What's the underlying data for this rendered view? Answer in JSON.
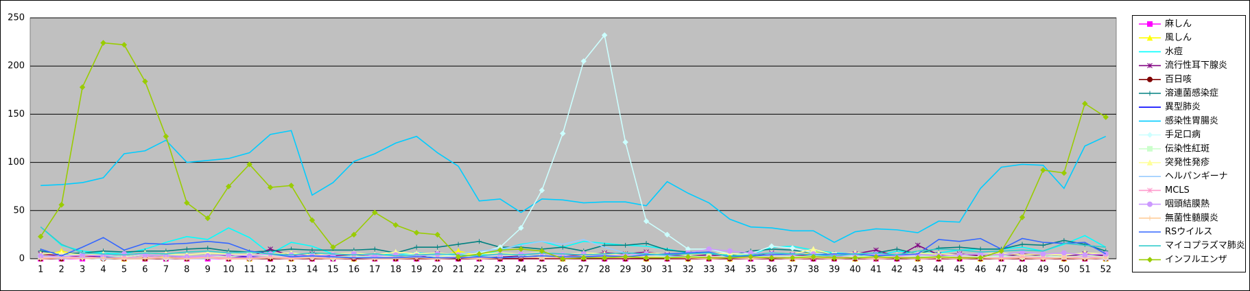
{
  "chart_data": {
    "type": "line",
    "categories": [
      "1",
      "2",
      "3",
      "4",
      "5",
      "6",
      "7",
      "8",
      "9",
      "10",
      "11",
      "12",
      "13",
      "14",
      "15",
      "16",
      "17",
      "18",
      "19",
      "20",
      "21",
      "22",
      "23",
      "24",
      "25",
      "26",
      "27",
      "28",
      "29",
      "30",
      "31",
      "32",
      "33",
      "34",
      "35",
      "36",
      "37",
      "38",
      "39",
      "40",
      "41",
      "42",
      "43",
      "44",
      "45",
      "46",
      "47",
      "48",
      "49",
      "50",
      "51",
      "52"
    ],
    "ylim": [
      0,
      250
    ],
    "yticks": [
      0,
      50,
      100,
      150,
      200,
      250
    ],
    "grid": true,
    "legend": "right",
    "series": [
      {
        "name": "麻しん",
        "color": "#FF00FF",
        "marker": "square",
        "values": [
          0,
          0,
          0,
          1,
          0,
          0,
          0,
          0,
          0,
          0,
          0,
          0,
          0,
          0,
          0,
          0,
          0,
          0,
          0,
          0,
          0,
          0,
          0,
          0,
          0,
          0,
          0,
          0,
          0,
          0,
          0,
          0,
          0,
          0,
          0,
          0,
          0,
          0,
          0,
          0,
          0,
          0,
          0,
          0,
          0,
          0,
          0,
          0,
          0,
          0,
          0,
          0
        ]
      },
      {
        "name": "風しん",
        "color": "#FFFF00",
        "marker": "triangle",
        "values": [
          2,
          8,
          3,
          1,
          0,
          1,
          2,
          1,
          3,
          1,
          0,
          1,
          0,
          1,
          2,
          0,
          1,
          4,
          2,
          1,
          8,
          3,
          1,
          2,
          1,
          0,
          1,
          3,
          5,
          0,
          1,
          0,
          1,
          0,
          2,
          1,
          0,
          8,
          1,
          0,
          1,
          2,
          0,
          1,
          2,
          0,
          1,
          2,
          1,
          0,
          1,
          0
        ]
      },
      {
        "name": "水痘",
        "color": "#00FFFF",
        "marker": "none",
        "values": [
          33,
          14,
          8,
          6,
          5,
          10,
          17,
          23,
          20,
          32,
          22,
          5,
          17,
          13,
          5,
          3,
          5,
          4,
          6,
          5,
          5,
          3,
          9,
          15,
          18,
          12,
          18,
          16,
          14,
          13,
          10,
          6,
          5,
          4,
          4,
          12,
          13,
          9,
          6,
          5,
          3,
          8,
          6,
          6,
          9,
          10,
          10,
          12,
          8,
          15,
          24,
          12
        ]
      },
      {
        "name": "流行性耳下腺炎",
        "color": "#800080",
        "marker": "star",
        "values": [
          5,
          3,
          2,
          3,
          2,
          4,
          3,
          1,
          2,
          3,
          2,
          10,
          3,
          5,
          3,
          4,
          2,
          2,
          1,
          5,
          3,
          1,
          2,
          3,
          2,
          3,
          4,
          6,
          5,
          7,
          4,
          3,
          4,
          2,
          3,
          6,
          4,
          3,
          4,
          5,
          9,
          2,
          14,
          4,
          5,
          3,
          2,
          5,
          3,
          2,
          5,
          3
        ]
      },
      {
        "name": "百日咳",
        "color": "#800000",
        "marker": "circle",
        "values": [
          0,
          0,
          1,
          0,
          0,
          0,
          0,
          0,
          1,
          0,
          0,
          0,
          0,
          0,
          0,
          0,
          0,
          0,
          0,
          0,
          0,
          0,
          0,
          0,
          0,
          0,
          0,
          0,
          0,
          0,
          0,
          0,
          0,
          0,
          0,
          0,
          0,
          0,
          0,
          0,
          0,
          0,
          0,
          0,
          0,
          0,
          0,
          0,
          0,
          0,
          0,
          0
        ]
      },
      {
        "name": "溶連菌感染症",
        "color": "#008080",
        "marker": "plus",
        "values": [
          8,
          5,
          6,
          8,
          7,
          8,
          8,
          10,
          11,
          8,
          7,
          8,
          10,
          9,
          9,
          9,
          10,
          6,
          12,
          12,
          15,
          18,
          12,
          12,
          10,
          12,
          8,
          14,
          14,
          16,
          9,
          7,
          6,
          3,
          8,
          10,
          9,
          6,
          5,
          3,
          6,
          10,
          5,
          11,
          12,
          10,
          10,
          15,
          14,
          19,
          15,
          8
        ]
      },
      {
        "name": "異型肺炎",
        "color": "#0000FF",
        "marker": "none",
        "values": [
          3,
          2,
          1,
          2,
          1,
          2,
          1,
          1,
          2,
          1,
          2,
          1,
          0,
          1,
          2,
          1,
          1,
          2,
          1,
          2,
          1,
          0,
          1,
          2,
          1,
          2,
          1,
          1,
          2,
          1,
          1,
          2,
          1,
          1,
          0,
          1,
          2,
          1,
          2,
          1,
          1,
          1,
          1,
          1,
          2,
          1,
          2,
          1,
          1,
          1,
          2,
          1
        ]
      },
      {
        "name": "感染性胃腸炎",
        "color": "#00CCFF",
        "marker": "none",
        "values": [
          76,
          77,
          79,
          84,
          109,
          112,
          123,
          100,
          102,
          104,
          110,
          129,
          133,
          66,
          79,
          101,
          109,
          120,
          127,
          110,
          96,
          60,
          62,
          48,
          62,
          61,
          58,
          59,
          59,
          55,
          80,
          68,
          58,
          41,
          33,
          32,
          29,
          29,
          17,
          28,
          31,
          30,
          27,
          39,
          38,
          73,
          95,
          98,
          97,
          73,
          117,
          127
        ]
      },
      {
        "name": "手足口病",
        "color": "#CCFFFF",
        "marker": "diamond",
        "values": [
          1,
          2,
          1,
          0,
          1,
          2,
          0,
          1,
          2,
          1,
          0,
          2,
          1,
          1,
          0,
          2,
          1,
          3,
          5,
          4,
          3,
          6,
          12,
          32,
          71,
          130,
          205,
          232,
          121,
          39,
          25,
          10,
          10,
          5,
          5,
          13,
          11,
          6,
          4,
          3,
          2,
          2,
          1,
          2,
          3,
          1,
          2,
          1,
          1,
          2,
          1,
          0
        ]
      },
      {
        "name": "伝染性紅斑",
        "color": "#CCFFCC",
        "marker": "square",
        "values": [
          2,
          3,
          4,
          3,
          2,
          4,
          3,
          2,
          3,
          2,
          4,
          3,
          2,
          3,
          2,
          3,
          2,
          3,
          4,
          2,
          3,
          2,
          3,
          4,
          2,
          3,
          2,
          3,
          4,
          3,
          2,
          3,
          2,
          3,
          2,
          3,
          2,
          3,
          4,
          2,
          3,
          2,
          3,
          2,
          3,
          2,
          3,
          2,
          3,
          2,
          3,
          2
        ]
      },
      {
        "name": "突発性発疹",
        "color": "#FFFF99",
        "marker": "triangle",
        "values": [
          5,
          6,
          4,
          5,
          4,
          6,
          5,
          4,
          6,
          5,
          4,
          5,
          6,
          4,
          5,
          6,
          4,
          7,
          5,
          6,
          4,
          5,
          6,
          5,
          7,
          4,
          6,
          5,
          4,
          6,
          5,
          4,
          6,
          5,
          4,
          6,
          5,
          10,
          4,
          6,
          5,
          4,
          6,
          5,
          4,
          5,
          6,
          4,
          5,
          4,
          6,
          5
        ]
      },
      {
        "name": "ヘルパンギーナ",
        "color": "#99CCFF",
        "marker": "none",
        "values": [
          1,
          0,
          1,
          0,
          1,
          0,
          1,
          0,
          0,
          1,
          0,
          1,
          0,
          1,
          0,
          1,
          2,
          1,
          3,
          4,
          5,
          8,
          10,
          14,
          18,
          15,
          20,
          12,
          6,
          5,
          3,
          2,
          1,
          2,
          1,
          1,
          0,
          1,
          0,
          1,
          0,
          1,
          0,
          1,
          0,
          1,
          0,
          1,
          0,
          1,
          0,
          1
        ]
      },
      {
        "name": "MCLS",
        "color": "#FF99CC",
        "marker": "star",
        "values": [
          1,
          1,
          2,
          1,
          1,
          2,
          1,
          1,
          2,
          1,
          1,
          2,
          1,
          1,
          2,
          1,
          1,
          2,
          1,
          1,
          2,
          1,
          1,
          2,
          1,
          1,
          2,
          1,
          1,
          2,
          1,
          1,
          2,
          1,
          1,
          2,
          1,
          1,
          2,
          1,
          1,
          2,
          1,
          1,
          2,
          1,
          1,
          2,
          1,
          1,
          2,
          1
        ]
      },
      {
        "name": "咽頭結膜熱",
        "color": "#CC99FF",
        "marker": "circle",
        "values": [
          3,
          2,
          4,
          3,
          5,
          4,
          3,
          2,
          3,
          4,
          3,
          5,
          4,
          3,
          4,
          5,
          3,
          4,
          3,
          5,
          4,
          3,
          4,
          5,
          6,
          4,
          5,
          3,
          4,
          5,
          4,
          6,
          10,
          8,
          6,
          5,
          4,
          5,
          3,
          4,
          5,
          3,
          4,
          3,
          4,
          5,
          4,
          7,
          5,
          6,
          4,
          5
        ]
      },
      {
        "name": "無菌性髄膜炎",
        "color": "#FFCC99",
        "marker": "plus",
        "values": [
          0,
          1,
          0,
          1,
          0,
          0,
          1,
          0,
          1,
          0,
          0,
          1,
          0,
          1,
          0,
          1,
          0,
          0,
          1,
          0,
          1,
          0,
          1,
          2,
          1,
          2,
          3,
          2,
          1,
          2,
          1,
          1,
          0,
          1,
          0,
          1,
          0,
          1,
          0,
          1,
          0,
          1,
          0,
          1,
          0,
          1,
          0,
          1,
          0,
          1,
          0,
          1
        ]
      },
      {
        "name": "RSウイルス",
        "color": "#3366FF",
        "marker": "none",
        "values": [
          10,
          3,
          12,
          22,
          9,
          16,
          15,
          16,
          18,
          16,
          8,
          5,
          2,
          3,
          2,
          1,
          1,
          1,
          2,
          1,
          1,
          2,
          1,
          2,
          3,
          2,
          2,
          3,
          2,
          4,
          5,
          6,
          7,
          2,
          3,
          4,
          5,
          4,
          5,
          5,
          3,
          4,
          5,
          20,
          18,
          21,
          10,
          21,
          17,
          16,
          17,
          5
        ]
      },
      {
        "name": "マイコプラズマ肺炎",
        "color": "#33CCCC",
        "marker": "none",
        "values": [
          33,
          15,
          6,
          5,
          4,
          6,
          5,
          7,
          8,
          6,
          7,
          5,
          4,
          6,
          5,
          4,
          5,
          3,
          4,
          5,
          4,
          3,
          5,
          4,
          6,
          5,
          4,
          5,
          6,
          5,
          4,
          5,
          6,
          3,
          4,
          6,
          5,
          4,
          3,
          5,
          6,
          4,
          8,
          10,
          9,
          7,
          8,
          9,
          8,
          16,
          14,
          12
        ]
      },
      {
        "name": "インフルエンザ",
        "color": "#99CC00",
        "marker": "diamond",
        "values": [
          23,
          56,
          178,
          224,
          222,
          184,
          127,
          58,
          42,
          75,
          98,
          74,
          76,
          40,
          12,
          25,
          48,
          35,
          27,
          25,
          2,
          5,
          9,
          10,
          8,
          0,
          1,
          1,
          2,
          1,
          1,
          2,
          1,
          1,
          2,
          1,
          1,
          2,
          1,
          1,
          2,
          1,
          1,
          2,
          1,
          1,
          8,
          43,
          92,
          89,
          161,
          147
        ]
      }
    ]
  }
}
